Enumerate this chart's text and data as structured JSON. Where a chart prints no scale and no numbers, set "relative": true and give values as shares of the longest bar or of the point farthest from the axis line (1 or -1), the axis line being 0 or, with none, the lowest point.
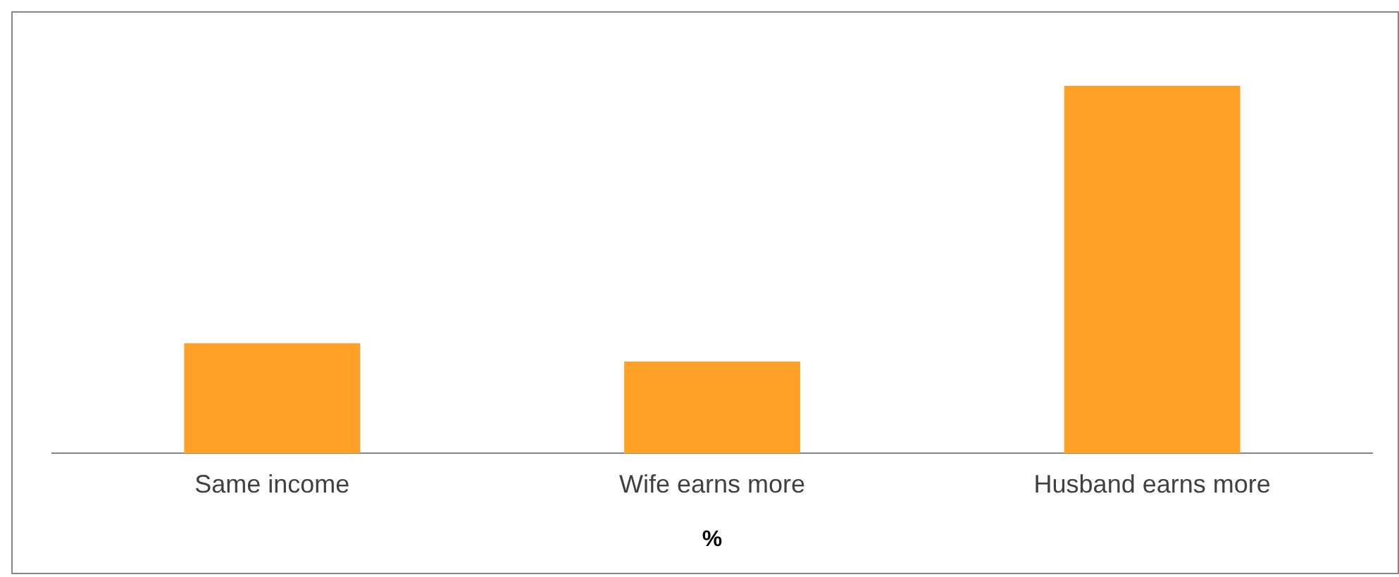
{
  "chart_data": {
    "type": "bar",
    "xlabel": "%",
    "categories": [
      "Same income",
      "Wife earns more",
      "Husband earns more"
    ],
    "values": [
      0.3,
      0.25,
      1
    ],
    "color": "#ffa126",
    "relative": true,
    "grid": false,
    "legend": false
  }
}
